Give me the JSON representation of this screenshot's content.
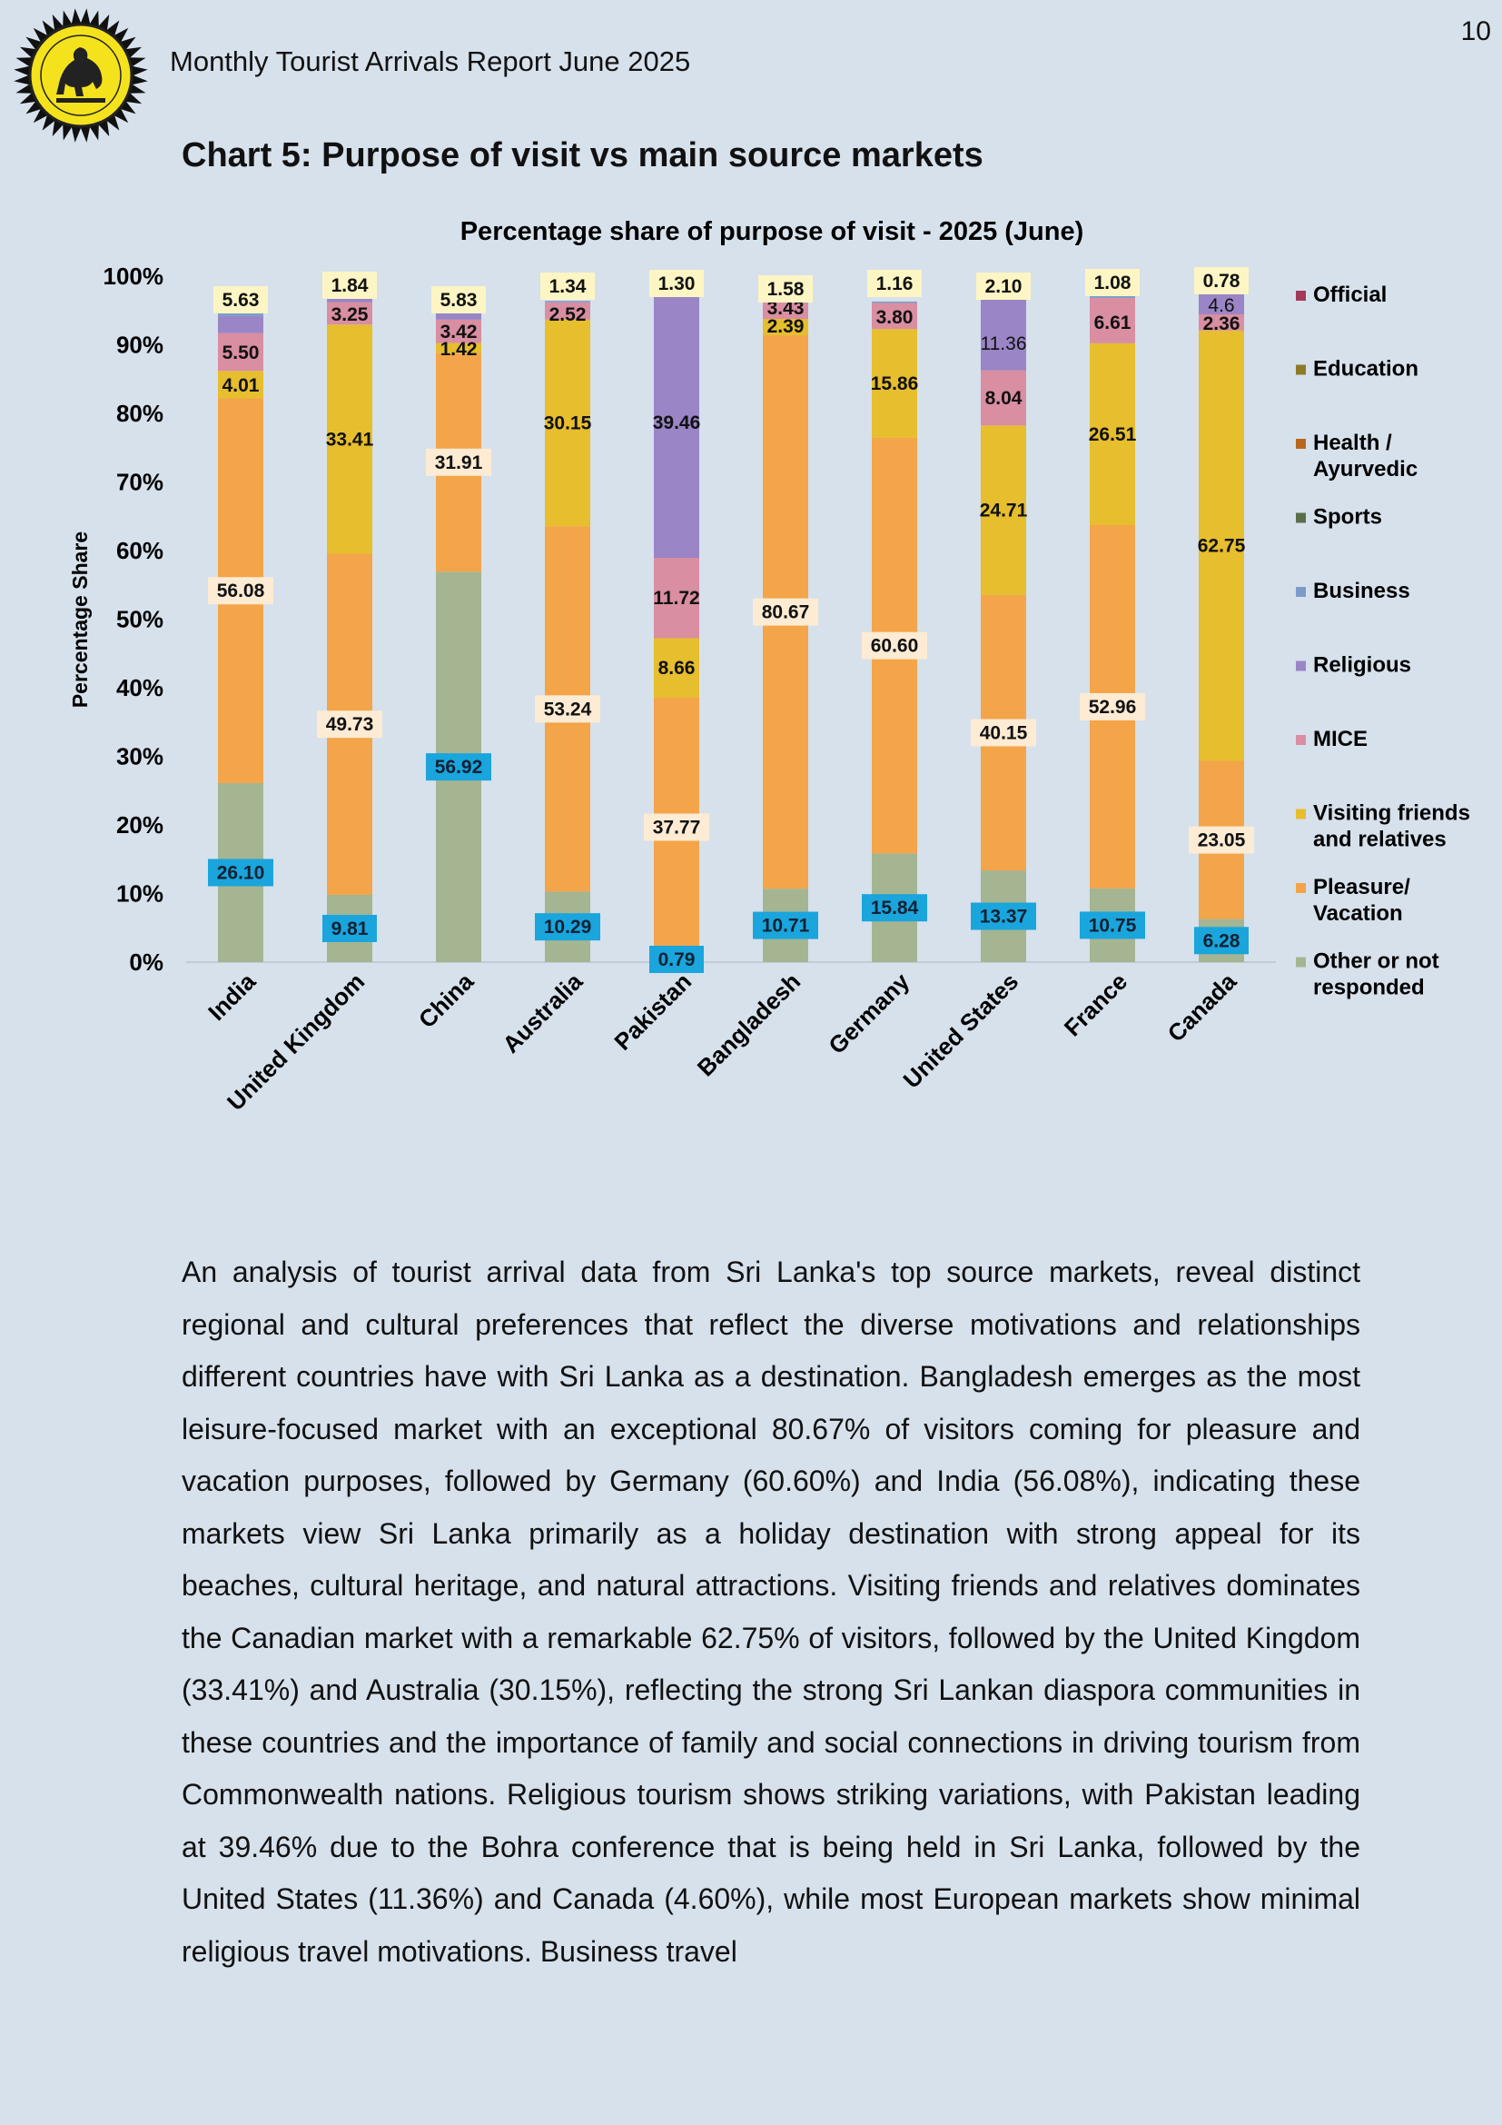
{
  "header": {
    "page_number": "10",
    "report_title": "Monthly Tourist Arrivals Report June 2025"
  },
  "chart_heading": "Chart 5: Purpose of visit vs main source markets",
  "chart_data": {
    "type": "bar",
    "stacked": true,
    "title": "Percentage share of purpose of visit  - 2025 (June)",
    "xlabel": "",
    "ylabel": "Percentage Share",
    "ylim": [
      0,
      100
    ],
    "yticks": [
      "0%",
      "10%",
      "20%",
      "30%",
      "40%",
      "50%",
      "60%",
      "70%",
      "80%",
      "90%",
      "100%"
    ],
    "grid": false,
    "legend_position": "right",
    "categories": [
      "India",
      "United Kingdom",
      "China",
      "Australia",
      "Pakistan",
      "Bangladesh",
      "Germany",
      "United States",
      "France",
      "Canada"
    ],
    "series": [
      {
        "name": "Other or not responded",
        "color": "#a5b592",
        "values": [
          26.1,
          9.81,
          56.92,
          10.29,
          0.79,
          10.71,
          15.84,
          13.37,
          10.75,
          6.28
        ]
      },
      {
        "name": "Pleasure/ Vacation",
        "color": "#f4a449",
        "values": [
          56.08,
          49.73,
          31.91,
          53.24,
          37.77,
          80.67,
          60.6,
          40.15,
          52.96,
          23.05
        ]
      },
      {
        "name": "Visiting friends and relatives",
        "color": "#e6be2e",
        "values": [
          4.01,
          33.41,
          1.42,
          30.15,
          8.66,
          2.39,
          15.86,
          24.71,
          26.51,
          62.75
        ]
      },
      {
        "name": "MICE",
        "color": "#d98ea2",
        "values": [
          5.5,
          3.25,
          3.42,
          2.52,
          11.72,
          3.43,
          3.8,
          8.04,
          6.61,
          2.36
        ]
      },
      {
        "name": "Religious",
        "color": "#9a85c6",
        "values": [
          2.5,
          0.5,
          1.5,
          0.0,
          39.46,
          0.4,
          0.0,
          11.36,
          0.0,
          4.6
        ]
      },
      {
        "name": "Business",
        "color": "#7b9cc9",
        "values": [
          0.5,
          0.3,
          0.7,
          0.2,
          0.0,
          0.2,
          0.2,
          0.0,
          0.5,
          0.0
        ]
      },
      {
        "name": "Sports",
        "color": "#5b6e4a",
        "values": [
          0.3,
          0.0,
          0.0,
          0.0,
          0.0,
          0.0,
          0.0,
          0.0,
          0.0,
          0.0
        ]
      },
      {
        "name": "Health / Ayurvedic",
        "color": "#b8671e",
        "values": [
          0.2,
          0.0,
          0.0,
          0.0,
          0.0,
          0.0,
          0.0,
          0.0,
          0.0,
          0.0
        ]
      },
      {
        "name": "Education",
        "color": "#8c7a26",
        "values": [
          0.3,
          0.0,
          0.3,
          0.0,
          0.0,
          0.0,
          0.0,
          0.0,
          0.0,
          0.0
        ]
      },
      {
        "name": "Official",
        "color": "#a33a5a",
        "values": [
          0.0,
          0.0,
          0.0,
          0.0,
          0.0,
          0.0,
          0.0,
          0.0,
          0.0,
          0.0
        ]
      }
    ],
    "data_labels": [
      {
        "category": "India",
        "series": "Other or not responded",
        "text": "26.10",
        "style": "cyan"
      },
      {
        "category": "India",
        "series": "Pleasure/ Vacation",
        "text": "56.08",
        "style": "cream"
      },
      {
        "category": "India",
        "series": "Visiting friends and relatives",
        "text": "4.01",
        "style": "plain"
      },
      {
        "category": "India",
        "series": "MICE",
        "text": "5.50",
        "style": "plain"
      },
      {
        "category": "India",
        "series": "top",
        "text": "5.63",
        "style": "yellow"
      },
      {
        "category": "United Kingdom",
        "series": "Other or not responded",
        "text": "9.81",
        "style": "cyan"
      },
      {
        "category": "United Kingdom",
        "series": "Pleasure/ Vacation",
        "text": "49.73",
        "style": "cream"
      },
      {
        "category": "United Kingdom",
        "series": "Visiting friends and relatives",
        "text": "33.41",
        "style": "plain"
      },
      {
        "category": "United Kingdom",
        "series": "MICE",
        "text": "3.25",
        "style": "plain"
      },
      {
        "category": "United Kingdom",
        "series": "top",
        "text": "1.84",
        "style": "yellow"
      },
      {
        "category": "China",
        "series": "Other or not responded",
        "text": "56.92",
        "style": "cyan"
      },
      {
        "category": "China",
        "series": "Pleasure/ Vacation",
        "text": "31.91",
        "style": "cream"
      },
      {
        "category": "China",
        "series": "Visiting friends and relatives",
        "text": "1.42",
        "style": "plain"
      },
      {
        "category": "China",
        "series": "MICE",
        "text": "3.42",
        "style": "plain"
      },
      {
        "category": "China",
        "series": "top",
        "text": "5.83",
        "style": "yellow"
      },
      {
        "category": "Australia",
        "series": "Other or not responded",
        "text": "10.29",
        "style": "cyan"
      },
      {
        "category": "Australia",
        "series": "Pleasure/ Vacation",
        "text": "53.24",
        "style": "cream"
      },
      {
        "category": "Australia",
        "series": "Visiting friends and relatives",
        "text": "30.15",
        "style": "plain"
      },
      {
        "category": "Australia",
        "series": "MICE",
        "text": "2.52",
        "style": "plain"
      },
      {
        "category": "Australia",
        "series": "top",
        "text": "1.34",
        "style": "yellow"
      },
      {
        "category": "Pakistan",
        "series": "Other or not responded",
        "text": "0.79",
        "style": "cyan"
      },
      {
        "category": "Pakistan",
        "series": "Pleasure/ Vacation",
        "text": "37.77",
        "style": "cream"
      },
      {
        "category": "Pakistan",
        "series": "Visiting friends and relatives",
        "text": "8.66",
        "style": "plain"
      },
      {
        "category": "Pakistan",
        "series": "MICE",
        "text": "11.72",
        "style": "plain"
      },
      {
        "category": "Pakistan",
        "series": "Religious",
        "text": "39.46",
        "style": "plain"
      },
      {
        "category": "Pakistan",
        "series": "top",
        "text": "1.30",
        "style": "yellow"
      },
      {
        "category": "Bangladesh",
        "series": "Other or not responded",
        "text": "10.71",
        "style": "cyan"
      },
      {
        "category": "Bangladesh",
        "series": "Pleasure/ Vacation",
        "text": "80.67",
        "style": "cream"
      },
      {
        "category": "Bangladesh",
        "series": "Visiting friends and relatives",
        "text": "2.39",
        "style": "plain"
      },
      {
        "category": "Bangladesh",
        "series": "MICE",
        "text": "3.43",
        "style": "plain"
      },
      {
        "category": "Bangladesh",
        "series": "top",
        "text": "1.58",
        "style": "yellow"
      },
      {
        "category": "Germany",
        "series": "Other or not responded",
        "text": "15.84",
        "style": "cyan"
      },
      {
        "category": "Germany",
        "series": "Pleasure/ Vacation",
        "text": "60.60",
        "style": "cream"
      },
      {
        "category": "Germany",
        "series": "Visiting friends and relatives",
        "text": "15.86",
        "style": "plain"
      },
      {
        "category": "Germany",
        "series": "MICE",
        "text": "3.80",
        "style": "plain"
      },
      {
        "category": "Germany",
        "series": "top",
        "text": "1.16",
        "style": "yellow"
      },
      {
        "category": "United States",
        "series": "Other or not responded",
        "text": "13.37",
        "style": "cyan"
      },
      {
        "category": "United States",
        "series": "Pleasure/ Vacation",
        "text": "40.15",
        "style": "cream"
      },
      {
        "category": "United States",
        "series": "Visiting friends and relatives",
        "text": "24.71",
        "style": "plain"
      },
      {
        "category": "United States",
        "series": "MICE",
        "text": "8.04",
        "style": "plain"
      },
      {
        "category": "United States",
        "series": "Religious",
        "text": "11.36",
        "style": "plain-light"
      },
      {
        "category": "United States",
        "series": "top",
        "text": "2.10",
        "style": "yellow"
      },
      {
        "category": "France",
        "series": "Other or not responded",
        "text": "10.75",
        "style": "cyan"
      },
      {
        "category": "France",
        "series": "Pleasure/ Vacation",
        "text": "52.96",
        "style": "cream"
      },
      {
        "category": "France",
        "series": "Visiting friends and relatives",
        "text": "26.51",
        "style": "plain"
      },
      {
        "category": "France",
        "series": "MICE",
        "text": "6.61",
        "style": "plain"
      },
      {
        "category": "France",
        "series": "top",
        "text": "1.08",
        "style": "yellow"
      },
      {
        "category": "Canada",
        "series": "Other or not responded",
        "text": "6.28",
        "style": "cyan"
      },
      {
        "category": "Canada",
        "series": "Pleasure/ Vacation",
        "text": "23.05",
        "style": "cream"
      },
      {
        "category": "Canada",
        "series": "Visiting friends and relatives",
        "text": "62.75",
        "style": "plain"
      },
      {
        "category": "Canada",
        "series": "MICE",
        "text": "2.36",
        "style": "plain"
      },
      {
        "category": "Canada",
        "series": "Religious",
        "text": "4.6",
        "style": "plain-light"
      },
      {
        "category": "Canada",
        "series": "top",
        "text": "0.78",
        "style": "yellow"
      }
    ],
    "legend": [
      {
        "lines": [
          "Official"
        ],
        "color": "#a33a5a"
      },
      {
        "lines": [
          "Education"
        ],
        "color": "#8c7a26"
      },
      {
        "lines": [
          "Health /",
          "Ayurvedic"
        ],
        "color": "#b8671e"
      },
      {
        "lines": [
          "Sports"
        ],
        "color": "#5b6e4a"
      },
      {
        "lines": [
          "Business"
        ],
        "color": "#7b9cc9"
      },
      {
        "lines": [
          "Religious"
        ],
        "color": "#9a85c6"
      },
      {
        "lines": [
          "MICE"
        ],
        "color": "#d98ea2"
      },
      {
        "lines": [
          "Visiting friends",
          "and relatives"
        ],
        "color": "#e6be2e"
      },
      {
        "lines": [
          "Pleasure/",
          "Vacation"
        ],
        "color": "#f4a449"
      },
      {
        "lines": [
          "Other or not",
          "responded"
        ],
        "color": "#a5b592"
      }
    ],
    "label_colors": {
      "cyan": "#1aa5dc",
      "cream": "#fdebd3",
      "yellow": "#fdf5c4"
    }
  },
  "body_text": "An analysis of tourist arrival data from Sri Lanka's top source markets, reveal distinct regional and cultural preferences that reflect the diverse motivations and relationships different countries have with Sri Lanka as a destination. Bangladesh emerges as the most leisure-focused market with an exceptional 80.67% of visitors coming for pleasure and vacation purposes, followed by Germany (60.60%) and India (56.08%), indicating these markets view Sri Lanka primarily as a holiday destination with strong appeal for its beaches, cultural heritage, and natural attractions. Visiting friends and relatives dominates the Canadian market with a remarkable 62.75% of visitors, followed by the United Kingdom (33.41%) and Australia (30.15%), reflecting the strong Sri Lankan diaspora communities in these countries and the importance of family and social connections in driving tourism from Commonwealth nations. Religious tourism shows striking variations, with Pakistan leading at 39.46% due to the Bohra conference that is being held in Sri Lanka, followed by the United States (11.36%) and Canada (4.60%), while most European markets show minimal religious travel motivations. Business travel"
}
